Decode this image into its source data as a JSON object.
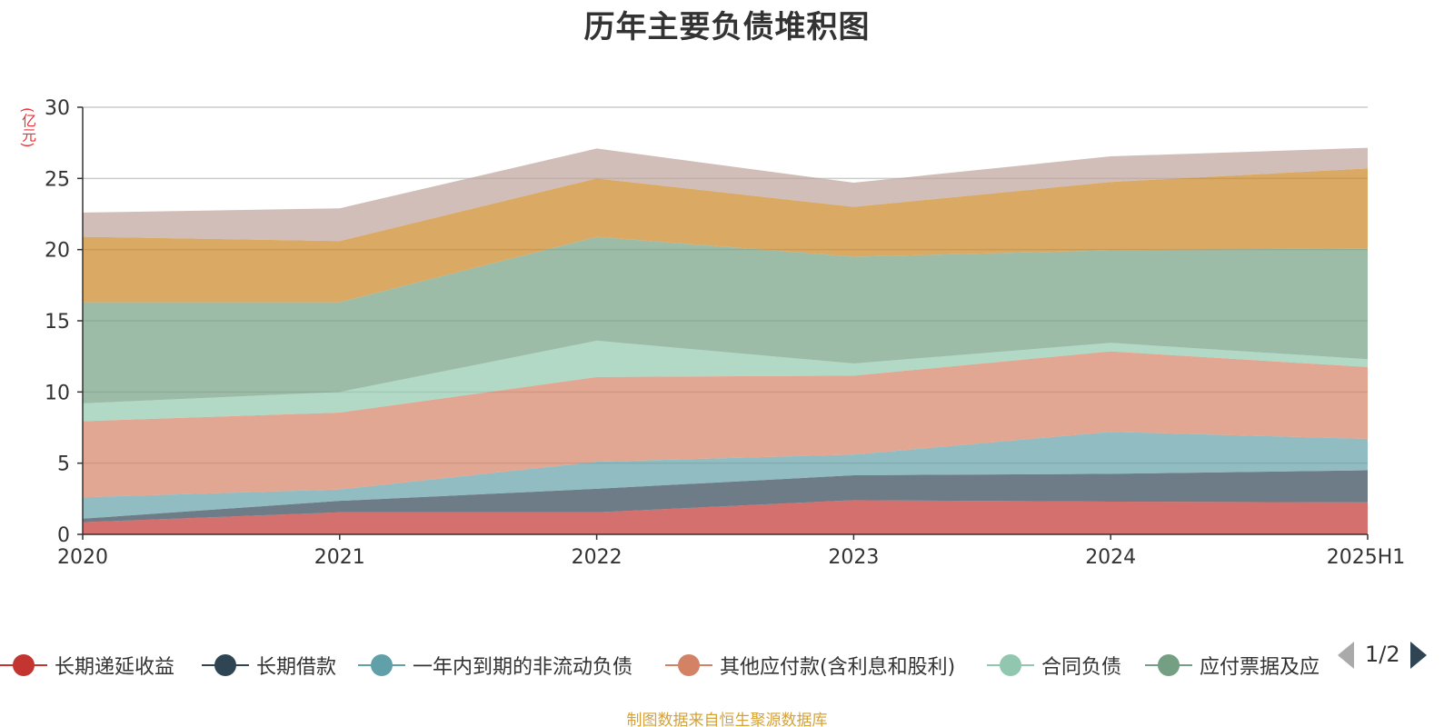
{
  "chart_data": {
    "type": "area",
    "title": "历年主要负债堆积图",
    "ylabel": "(亿元)",
    "xlabel": "",
    "ylim": [
      0,
      30
    ],
    "yticks": [
      0,
      5,
      10,
      15,
      20,
      25,
      30
    ],
    "categories": [
      "2020",
      "2021",
      "2022",
      "2023",
      "2024",
      "2025H1"
    ],
    "grid": true,
    "stacked": true,
    "legend_position": "bottom",
    "series": [
      {
        "name": "长期递延收益",
        "color": "#c23531",
        "values": [
          0.85,
          1.55,
          1.55,
          2.4,
          2.3,
          2.25
        ]
      },
      {
        "name": "长期借款",
        "color": "#2f4554",
        "values": [
          0.25,
          0.8,
          1.65,
          1.75,
          1.95,
          2.25
        ]
      },
      {
        "name": "一年内到期的非流动负债",
        "color": "#61a0a8",
        "values": [
          1.5,
          0.8,
          1.9,
          1.45,
          2.95,
          2.2
        ]
      },
      {
        "name": "其他应付款(含利息和股利)",
        "color": "#d48265",
        "values": [
          5.35,
          5.4,
          5.95,
          5.55,
          5.65,
          5.05
        ]
      },
      {
        "name": "合同负债",
        "color": "#91c7ae",
        "values": [
          1.25,
          1.45,
          2.55,
          0.85,
          0.6,
          0.55
        ]
      },
      {
        "name": "应付票据及应付账款",
        "color": "#749f83",
        "values": [
          7.1,
          6.3,
          7.3,
          7.5,
          6.5,
          7.8
        ]
      },
      {
        "name": "",
        "color": "#ca8622",
        "values": [
          4.6,
          4.3,
          4.1,
          3.5,
          4.8,
          5.6
        ]
      },
      {
        "name": "",
        "color": "#bda29a",
        "values": [
          1.7,
          2.3,
          2.1,
          1.7,
          1.8,
          1.45
        ]
      }
    ]
  },
  "legend": {
    "visible_count": 6,
    "items": [
      {
        "label": "长期递延收益",
        "color": "#c23531"
      },
      {
        "label": "长期借款",
        "color": "#2f4554"
      },
      {
        "label": "一年内到期的非流动负债",
        "color": "#61a0a8"
      },
      {
        "label": "其他应付款(含利息和股利)",
        "color": "#d48265"
      },
      {
        "label": "合同负债",
        "color": "#91c7ae"
      },
      {
        "label": "应付票据及应",
        "color": "#749f83"
      }
    ],
    "page_indicator": "1/2"
  },
  "footer": {
    "source_note": "制图数据来自恒生聚源数据库"
  }
}
